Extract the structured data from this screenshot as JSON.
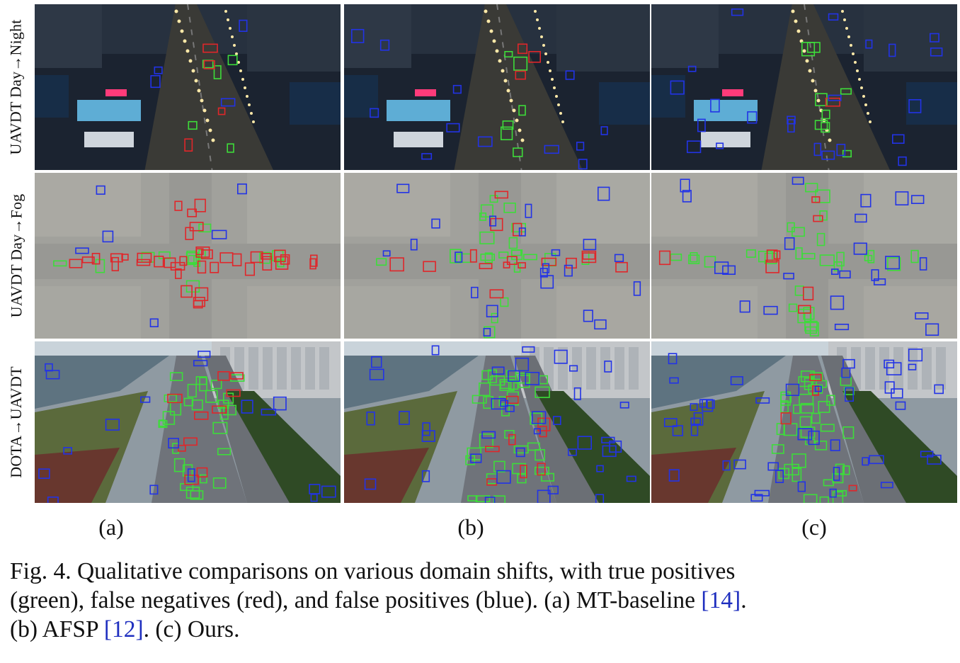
{
  "rows": [
    {
      "label": "UAVDT Day→Night",
      "scene": "night"
    },
    {
      "label": "UAVDT Day→Fog",
      "scene": "fog"
    },
    {
      "label": "DOTA→UAVDT",
      "scene": "day"
    }
  ],
  "columns": [
    {
      "label": "(a)"
    },
    {
      "label": "(b)"
    },
    {
      "label": "(c)"
    }
  ],
  "colors": {
    "true_positive": "#3ddc3a",
    "false_negative": "#e0262a",
    "false_positive": "#2233e6",
    "reference_link": "#1f2fbf"
  },
  "caption": {
    "line1": "Fig. 4.   Qualitative comparisons on various domain shifts, with true positives",
    "line2_a": "(green), false negatives (red), and false positives (blue). (a) MT-baseline ",
    "ref1": "[14]",
    "line2_b": ".",
    "line3_a": "(b) AFSP ",
    "ref2": "[12]",
    "line3_b": ". (c) Ours."
  }
}
